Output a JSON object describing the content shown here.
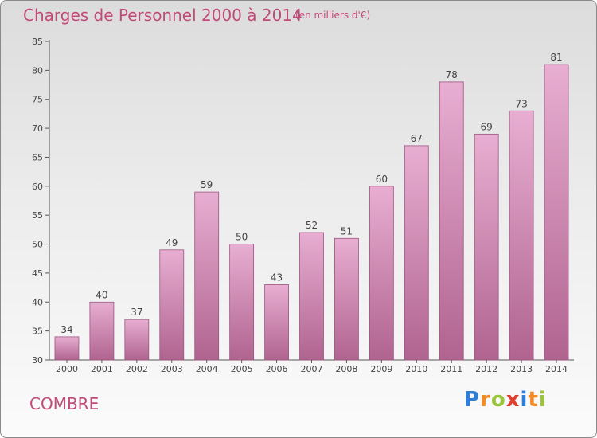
{
  "header": {
    "title": "Charges de Personnel 2000 à 2014",
    "subtitle": "(en milliers d'€)"
  },
  "footer": {
    "commune": "COMBRE",
    "logo_letters": [
      "P",
      "r",
      "o",
      "x",
      "i",
      "t",
      "i"
    ]
  },
  "colors": {
    "title": "#c04a78",
    "bar_top": "#e8aed2",
    "bar_bottom": "#b0648f",
    "logo": [
      "#2f7fd6",
      "#f08a24",
      "#9ac43a",
      "#e23c2c",
      "#2f7fd6",
      "#f08a24",
      "#9ac43a"
    ]
  },
  "chart_data": {
    "type": "bar",
    "title": "Charges de Personnel 2000 à 2014",
    "subtitle": "(en milliers d'€)",
    "categories": [
      "2000",
      "2001",
      "2002",
      "2003",
      "2004",
      "2005",
      "2006",
      "2007",
      "2008",
      "2009",
      "2010",
      "2011",
      "2012",
      "2013",
      "2014"
    ],
    "values": [
      34,
      40,
      37,
      49,
      59,
      50,
      43,
      52,
      51,
      60,
      67,
      78,
      69,
      73,
      81
    ],
    "ylim": [
      30,
      85
    ],
    "yticks": [
      30,
      35,
      40,
      45,
      50,
      55,
      60,
      65,
      70,
      75,
      80,
      85
    ],
    "data_labels": true,
    "grid": false,
    "legend": "none"
  }
}
